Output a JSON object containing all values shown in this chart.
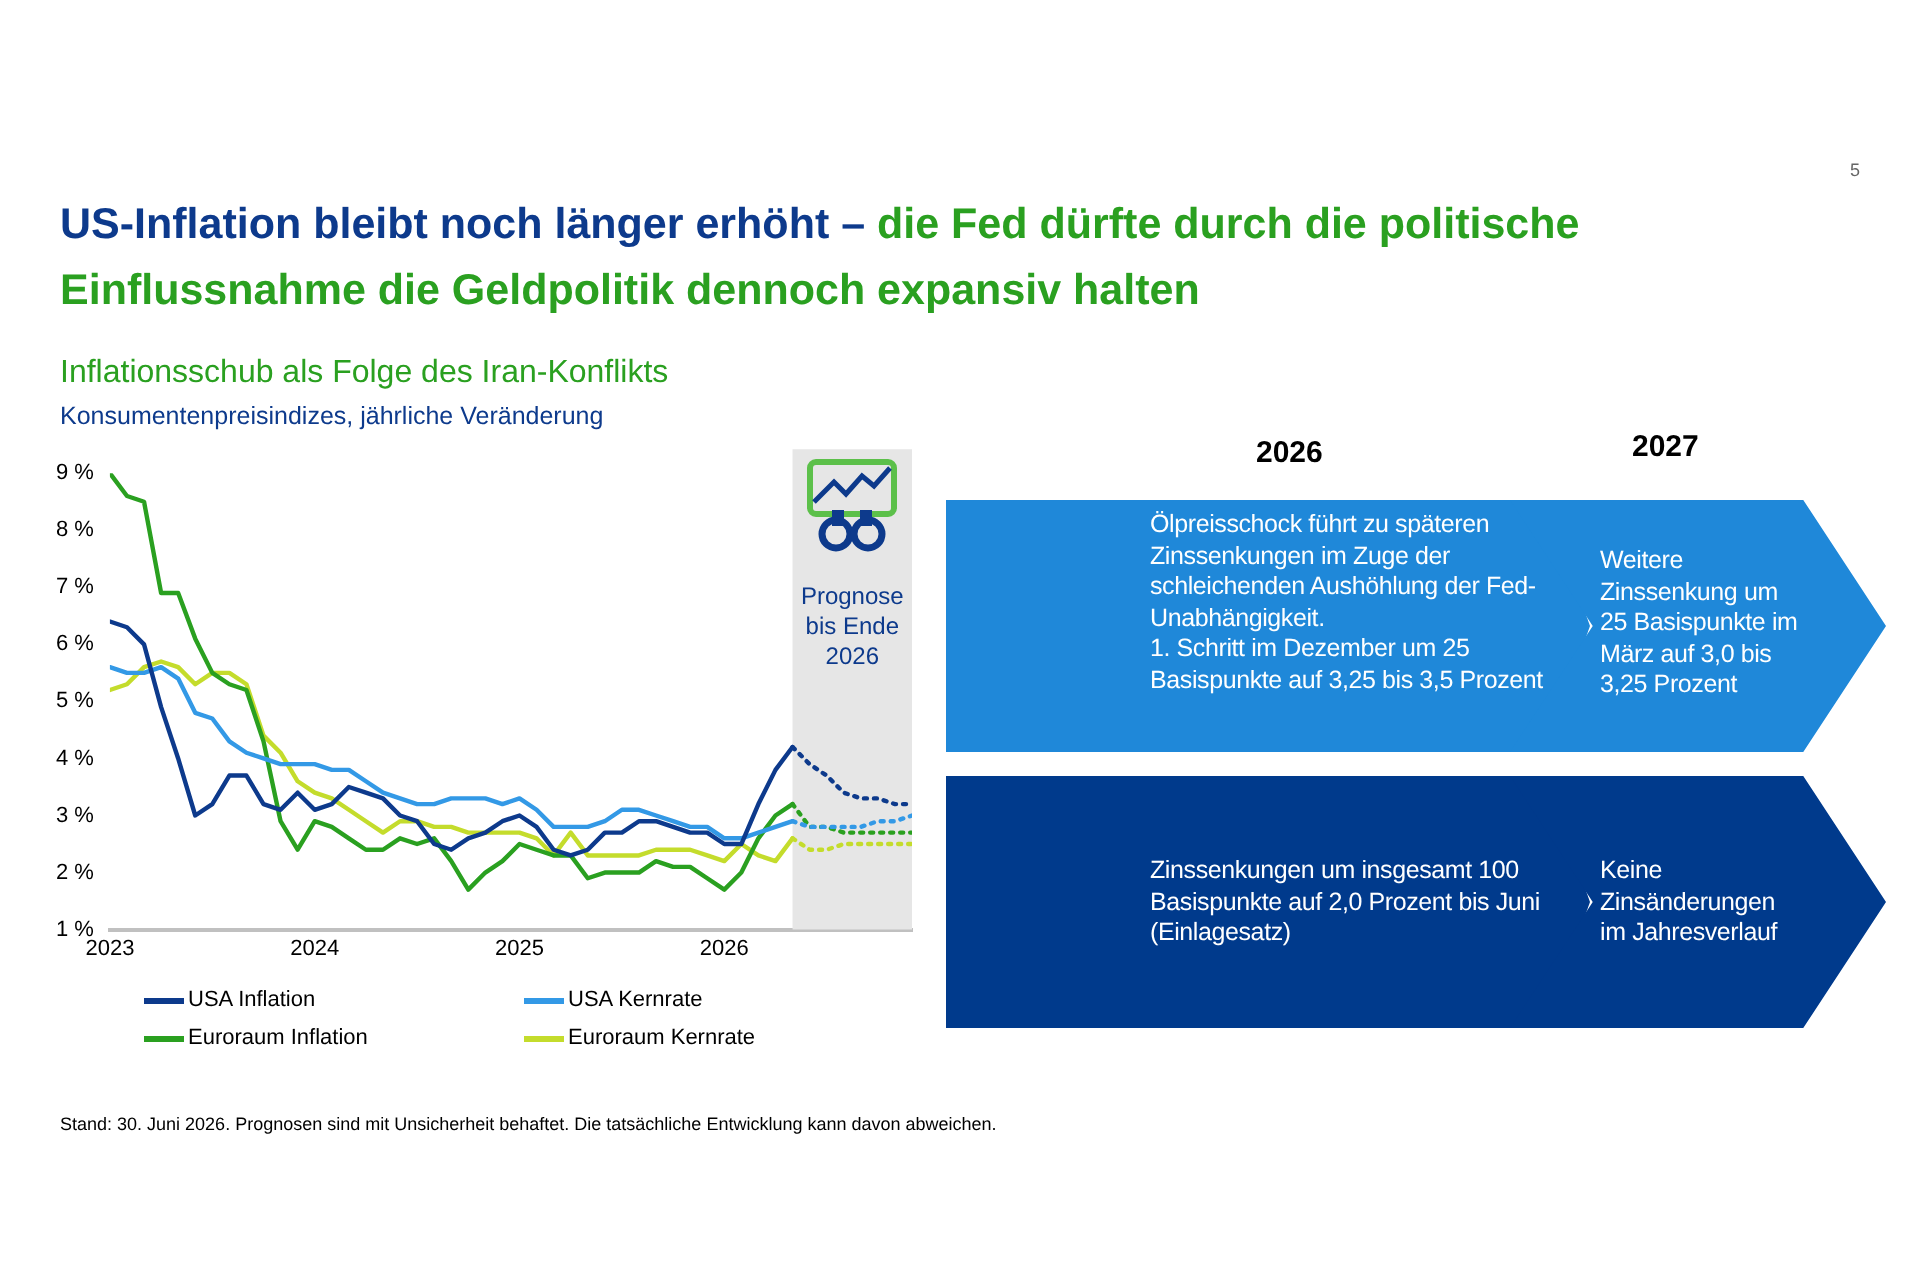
{
  "chart_data": {
    "type": "line",
    "title": "Inflationsschub als Folge des Iran-Konflikts",
    "subtitle": "Konsumentenpreisindizes, jährliche Veränderung",
    "x": [
      "2023-01",
      "2023-02",
      "2023-03",
      "2023-04",
      "2023-05",
      "2023-06",
      "2023-07",
      "2023-08",
      "2023-09",
      "2023-10",
      "2023-11",
      "2023-12",
      "2024-01",
      "2024-02",
      "2024-03",
      "2024-04",
      "2024-05",
      "2024-06",
      "2024-07",
      "2024-08",
      "2024-09",
      "2024-10",
      "2024-11",
      "2024-12",
      "2025-01",
      "2025-02",
      "2025-03",
      "2025-04",
      "2025-05",
      "2025-06",
      "2025-07",
      "2025-08",
      "2025-09",
      "2025-10",
      "2025-11",
      "2025-12",
      "2026-01",
      "2026-02",
      "2026-03",
      "2026-04",
      "2026-05"
    ],
    "series": [
      {
        "name": "USA Inflation",
        "color": "#0d3a8c",
        "values": [
          6.4,
          6.3,
          6.0,
          4.9,
          4.0,
          3.0,
          3.2,
          3.7,
          3.7,
          3.2,
          3.1,
          3.4,
          3.1,
          3.2,
          3.5,
          3.4,
          3.3,
          3.0,
          2.9,
          2.5,
          2.4,
          2.6,
          2.7,
          2.9,
          3.0,
          2.8,
          2.4,
          2.3,
          2.4,
          2.7,
          2.7,
          2.9,
          2.9,
          2.8,
          2.7,
          2.7,
          2.5,
          2.5,
          3.2,
          3.8,
          4.2
        ]
      },
      {
        "name": "USA Kernrate",
        "color": "#3399e6",
        "values": [
          5.6,
          5.5,
          5.5,
          5.6,
          5.4,
          4.8,
          4.7,
          4.3,
          4.1,
          4.0,
          3.9,
          3.9,
          3.9,
          3.8,
          3.8,
          3.6,
          3.4,
          3.3,
          3.2,
          3.2,
          3.3,
          3.3,
          3.3,
          3.2,
          3.3,
          3.1,
          2.8,
          2.8,
          2.8,
          2.9,
          3.1,
          3.1,
          3.0,
          2.9,
          2.8,
          2.8,
          2.6,
          2.6,
          2.7,
          2.8,
          2.9
        ]
      },
      {
        "name": "Euroraum Inflation",
        "color": "#2aa020",
        "values": [
          9.0,
          8.6,
          8.5,
          6.9,
          6.9,
          6.1,
          5.5,
          5.3,
          5.2,
          4.3,
          2.9,
          2.4,
          2.9,
          2.8,
          2.6,
          2.4,
          2.4,
          2.6,
          2.5,
          2.6,
          2.2,
          1.7,
          2.0,
          2.2,
          2.5,
          2.4,
          2.3,
          2.3,
          1.9,
          2.0,
          2.0,
          2.0,
          2.2,
          2.1,
          2.1,
          1.9,
          1.7,
          2.0,
          2.6,
          3.0,
          3.2
        ]
      },
      {
        "name": "Euroraum Kernrate",
        "color": "#c4dc2c",
        "values": [
          5.2,
          5.3,
          5.6,
          5.7,
          5.6,
          5.3,
          5.5,
          5.5,
          5.3,
          4.4,
          4.1,
          3.6,
          3.4,
          3.3,
          3.1,
          2.9,
          2.7,
          2.9,
          2.9,
          2.8,
          2.8,
          2.7,
          2.7,
          2.7,
          2.7,
          2.6,
          2.3,
          2.7,
          2.3,
          2.3,
          2.3,
          2.3,
          2.4,
          2.4,
          2.4,
          2.3,
          2.2,
          2.5,
          2.3,
          2.2,
          2.6
        ]
      },
      {
        "color": "#0d3a8c",
        "line_style": "dotted",
        "x": [
          "2026-05",
          "2026-06",
          "2026-07",
          "2026-08",
          "2026-09",
          "2026-10",
          "2026-11",
          "2026-12"
        ],
        "values": [
          4.2,
          3.9,
          3.7,
          3.4,
          3.3,
          3.3,
          3.2,
          3.2
        ]
      },
      {
        "color": "#3399e6",
        "line_style": "dotted",
        "x": [
          "2026-05",
          "2026-06",
          "2026-07",
          "2026-08",
          "2026-09",
          "2026-10",
          "2026-11",
          "2026-12"
        ],
        "values": [
          2.9,
          2.8,
          2.8,
          2.8,
          2.8,
          2.9,
          2.9,
          3.0
        ]
      },
      {
        "color": "#2aa020",
        "line_style": "dotted",
        "x": [
          "2026-05",
          "2026-06",
          "2026-07",
          "2026-08",
          "2026-09",
          "2026-10",
          "2026-11",
          "2026-12"
        ],
        "values": [
          3.2,
          2.8,
          2.8,
          2.7,
          2.7,
          2.7,
          2.7,
          2.7
        ]
      },
      {
        "color": "#c4dc2c",
        "line_style": "dotted",
        "x": [
          "2026-05",
          "2026-06",
          "2026-07",
          "2026-08",
          "2026-09",
          "2026-10",
          "2026-11",
          "2026-12"
        ],
        "values": [
          2.6,
          2.4,
          2.4,
          2.5,
          2.5,
          2.5,
          2.5,
          2.5
        ]
      }
    ],
    "xlim": [
      "2023-01",
      "2026-12"
    ],
    "xticks": [
      {
        "value": "2023-01",
        "label": "2023"
      },
      {
        "value": "2024-01",
        "label": "2024"
      },
      {
        "value": "2025-01",
        "label": "2025"
      },
      {
        "value": "2026-01",
        "label": "2026"
      }
    ],
    "ylim": [
      1,
      9
    ],
    "yticks": [
      {
        "value": 1,
        "label": "1 %"
      },
      {
        "value": 2,
        "label": "2 %"
      },
      {
        "value": 3,
        "label": "3 %"
      },
      {
        "value": 4,
        "label": "4 %"
      },
      {
        "value": 5,
        "label": "5 %"
      },
      {
        "value": 6,
        "label": "6 %"
      },
      {
        "value": 7,
        "label": "7 %"
      },
      {
        "value": 8,
        "label": "8 %"
      },
      {
        "value": 9,
        "label": "9 %"
      }
    ],
    "bands": [
      {
        "axis": "x",
        "from": "2026-05",
        "to": "2026-12",
        "label": "Prognose bis Ende 2026",
        "color": "#e6e6e6"
      }
    ],
    "grid": false,
    "legend": "bottom",
    "marker": "none",
    "line_style": "solid",
    "annotations": [
      "US-Inflation bleibt noch länger erhöht – ",
      "die Fed dürfte durch die politische Einflussnahme die Geldpolitik dennoch expansiv halten",
      "2026",
      "2027",
      "Ölpreisschock führt zu späteren Zinssenkungen im Zuge der schleichenden Aushöhlung der Fed-Unabhängigkeit.",
      "1. Schritt im Dezember um 25 Basispunkte auf 3,25 bis 3,5 Prozent",
      "Weitere Zinssenkung um 25 Basispunkte im März auf 3,0 bis 3,25 Prozent",
      "Zinssenkungen um insgesamt 100 Basispunkte auf 2,0 Prozent bis Juni (Einlagesatz)",
      "Keine Zinsänderungen im Jahresverlauf",
      "Stand: 30. Juni 2026. Prognosen sind mit Unsicherheit behaftet. Die tatsächliche Entwicklung kann davon abweichen.",
      "5"
    ]
  }
}
